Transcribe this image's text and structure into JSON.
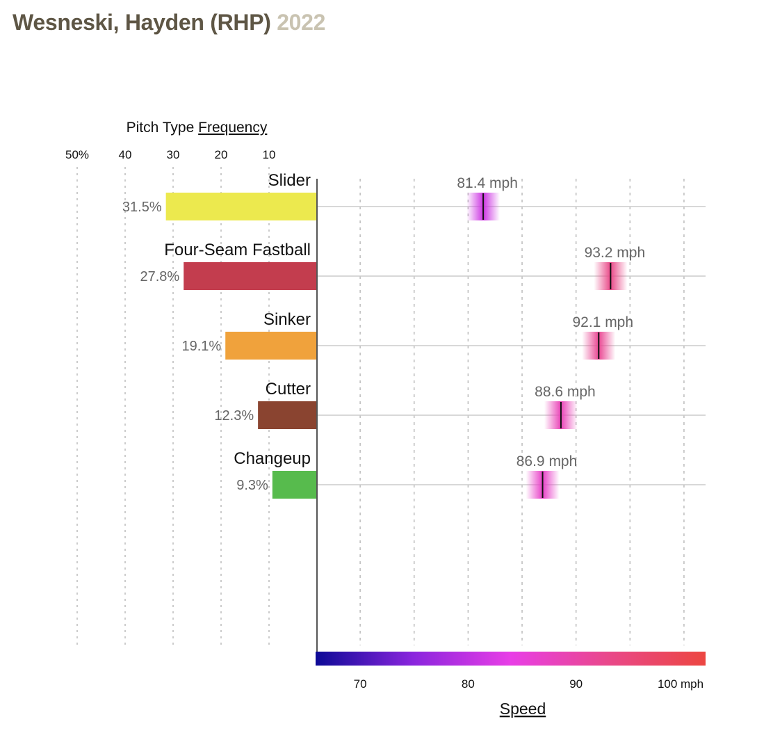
{
  "header": {
    "player": "Wesneski, Hayden (RHP)",
    "year": "2022"
  },
  "chart_data": {
    "type": "bar",
    "frequency_axis": {
      "title_prefix": "Pitch Type",
      "title_link": "Frequency",
      "ticks": [
        "50%",
        "40",
        "30",
        "20",
        "10"
      ],
      "tick_values": [
        50,
        40,
        30,
        20,
        10
      ],
      "range": [
        0,
        50
      ]
    },
    "speed_axis": {
      "title": "Speed",
      "ticks": [
        "70",
        "80",
        "90",
        "100 mph"
      ],
      "tick_values": [
        70,
        80,
        90,
        100
      ],
      "range": [
        66,
        102
      ],
      "gradient_colors": [
        "#0d0a96",
        "#8a25dd",
        "#e83ee6",
        "#e9488a",
        "#ec4641"
      ]
    },
    "series": [
      {
        "name": "Slider",
        "frequency": 31.5,
        "frequency_label": "31.5%",
        "speed": 81.4,
        "speed_label": "81.4 mph",
        "color": "#ece94e"
      },
      {
        "name": "Four-Seam Fastball",
        "frequency": 27.8,
        "frequency_label": "27.8%",
        "speed": 93.2,
        "speed_label": "93.2 mph",
        "color": "#c33d4e"
      },
      {
        "name": "Sinker",
        "frequency": 19.1,
        "frequency_label": "19.1%",
        "speed": 92.1,
        "speed_label": "92.1 mph",
        "color": "#f0a23c"
      },
      {
        "name": "Cutter",
        "frequency": 12.3,
        "frequency_label": "12.3%",
        "speed": 88.6,
        "speed_label": "88.6 mph",
        "color": "#8a4430"
      },
      {
        "name": "Changeup",
        "frequency": 9.3,
        "frequency_label": "9.3%",
        "speed": 86.9,
        "speed_label": "86.9 mph",
        "color": "#57bb4d"
      }
    ]
  }
}
